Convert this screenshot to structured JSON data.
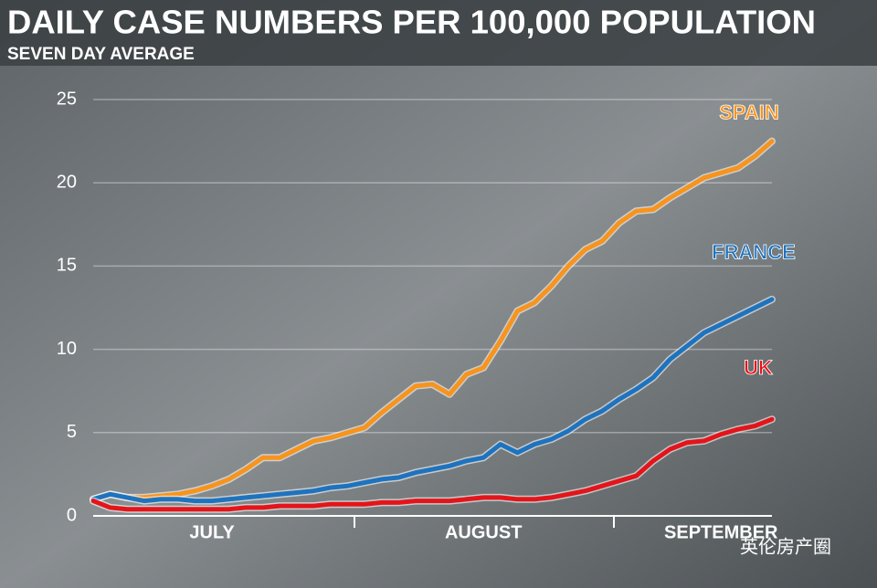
{
  "chart_data": {
    "type": "line",
    "title": "DAILY CASE NUMBERS PER 100,000 POPULATION",
    "subtitle": "SEVEN DAY AVERAGE",
    "watermark": "英伦房产圈",
    "categories": [
      null,
      null,
      null,
      null,
      null,
      null,
      null,
      "JULY",
      null,
      null,
      null,
      null,
      null,
      null,
      null,
      null,
      null,
      null,
      null,
      null,
      null,
      null,
      null,
      "AUGUST",
      null,
      null,
      null,
      null,
      null,
      null,
      null,
      null,
      null,
      null,
      null,
      null,
      null,
      "SEPTEMBER",
      null,
      null,
      null
    ],
    "ylim": [
      0,
      25
    ],
    "yticks": [
      0,
      5,
      10,
      15,
      20,
      25
    ],
    "grid": true,
    "series": [
      {
        "name": "SPAIN",
        "color": "#f7941d",
        "values": [
          1.0,
          1.3,
          1.1,
          1.1,
          1.2,
          1.3,
          1.5,
          1.8,
          2.2,
          2.8,
          3.5,
          3.5,
          4.0,
          4.5,
          4.7,
          5.0,
          5.3,
          6.2,
          7.0,
          7.8,
          7.9,
          7.3,
          8.5,
          8.9,
          10.5,
          12.3,
          12.8,
          13.8,
          15.0,
          16.0,
          16.5,
          17.6,
          18.3,
          18.4,
          19.1,
          19.7,
          20.3,
          20.6,
          20.9,
          21.6,
          22.5
        ]
      },
      {
        "name": "FRANCE",
        "color": "#1e73be",
        "values": [
          1.0,
          1.3,
          1.1,
          0.9,
          1.0,
          1.0,
          0.9,
          0.9,
          1.0,
          1.1,
          1.2,
          1.3,
          1.4,
          1.5,
          1.7,
          1.8,
          2.0,
          2.2,
          2.3,
          2.6,
          2.8,
          3.0,
          3.3,
          3.5,
          4.3,
          3.8,
          4.3,
          4.6,
          5.1,
          5.8,
          6.3,
          7.0,
          7.6,
          8.3,
          9.4,
          10.2,
          11.0,
          11.5,
          12.0,
          12.5,
          13.0
        ]
      },
      {
        "name": "UK",
        "color": "#e3151a",
        "values": [
          0.9,
          0.5,
          0.4,
          0.4,
          0.4,
          0.4,
          0.4,
          0.4,
          0.4,
          0.5,
          0.5,
          0.6,
          0.6,
          0.6,
          0.7,
          0.7,
          0.7,
          0.8,
          0.8,
          0.9,
          0.9,
          0.9,
          1.0,
          1.1,
          1.1,
          1.0,
          1.0,
          1.1,
          1.3,
          1.5,
          1.8,
          2.1,
          2.4,
          3.3,
          4.0,
          4.4,
          4.5,
          4.9,
          5.2,
          5.4,
          5.8
        ]
      }
    ]
  }
}
